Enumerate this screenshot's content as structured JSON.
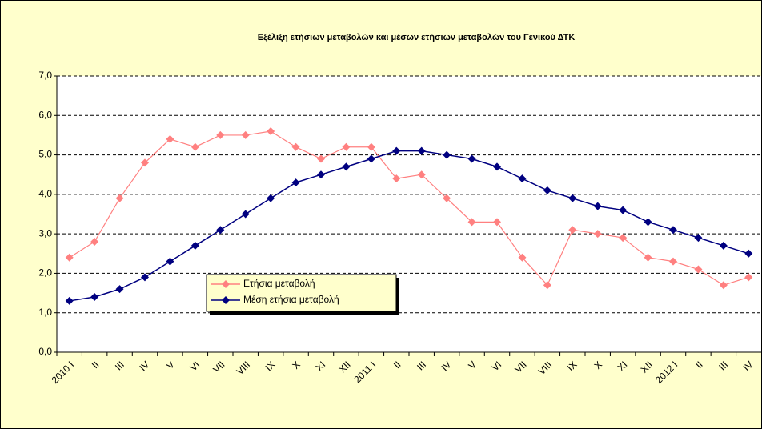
{
  "chart_data": {
    "type": "line",
    "title": "Εξέλιξη ετήσιων  μεταβολών και  μέσων ετήσιων μεταβολών του Γενικού ΔΤΚ",
    "categories": [
      "2010 I",
      "II",
      "III",
      "IV",
      "V",
      "VI",
      "VII",
      "VIII",
      "IX",
      "X",
      "XI",
      "XII",
      "2011 I",
      "II",
      "III",
      "IV",
      "V",
      "VI",
      "VII",
      "VIII",
      "IX",
      "X",
      "XI",
      "XII",
      "2012 I",
      "II",
      "III",
      "IV"
    ],
    "series": [
      {
        "name": "Ετήσια μεταβολή",
        "color": "#ff8080",
        "values": [
          2.4,
          2.8,
          3.9,
          4.8,
          5.4,
          5.2,
          5.5,
          5.5,
          5.6,
          5.2,
          4.9,
          5.2,
          5.2,
          4.4,
          4.5,
          3.9,
          3.3,
          3.3,
          2.4,
          1.7,
          3.1,
          3.0,
          2.9,
          2.4,
          2.3,
          2.1,
          1.7,
          1.9
        ]
      },
      {
        "name": "Μέση ετήσια μεταβολή",
        "color": "#000080",
        "values": [
          1.3,
          1.4,
          1.6,
          1.9,
          2.3,
          2.7,
          3.1,
          3.5,
          3.9,
          4.3,
          4.5,
          4.7,
          4.9,
          5.1,
          5.1,
          5.0,
          4.9,
          4.7,
          4.4,
          4.1,
          3.9,
          3.7,
          3.6,
          3.3,
          3.1,
          2.9,
          2.7,
          2.5
        ]
      }
    ],
    "ylim": [
      0,
      7
    ],
    "yticks": [
      {
        "value": 0,
        "label": "0,0"
      },
      {
        "value": 1,
        "label": "1,0"
      },
      {
        "value": 2,
        "label": "2,0"
      },
      {
        "value": 3,
        "label": "3,0"
      },
      {
        "value": 4,
        "label": "4,0"
      },
      {
        "value": 5,
        "label": "5,0"
      },
      {
        "value": 6,
        "label": "6,0"
      },
      {
        "value": 7,
        "label": "7,0"
      }
    ],
    "grid": true
  }
}
